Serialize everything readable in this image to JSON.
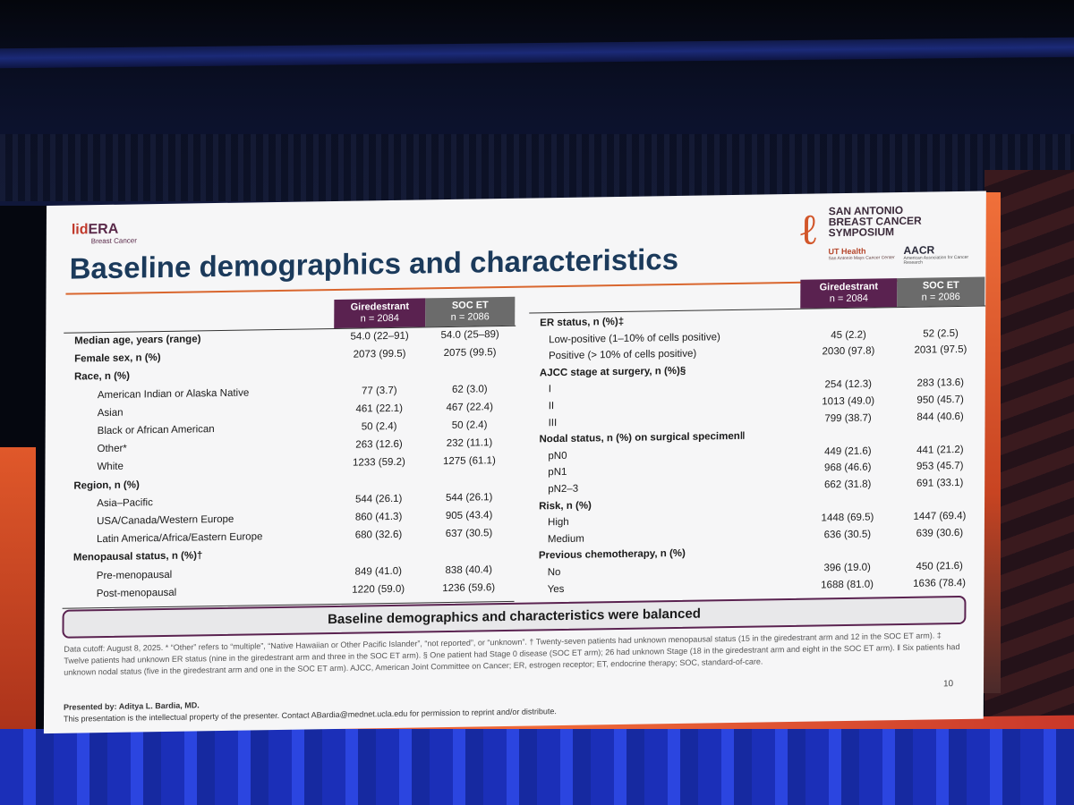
{
  "slide": {
    "logo": {
      "lid": "lid",
      "era": "ERA",
      "sub": "Breast Cancer"
    },
    "title": "Baseline demographics and characteristics",
    "symposium": {
      "name_line1": "SAN ANTONIO",
      "name_line2": "BREAST CANCER",
      "name_line3": "SYMPOSIUM",
      "ut": "UT Health",
      "ut_sub": "San Antonio Mays Cancer Center",
      "aacr": "AACR",
      "aacr_sub": "American Association for Cancer Research"
    },
    "columns": {
      "gir_name": "Giredestrant",
      "gir_n": "n = 2084",
      "soc_name": "SOC ET",
      "soc_n": "n = 2086"
    },
    "left_rows": [
      {
        "label": "Median age, years (range)",
        "bold": true,
        "v1": "54.0 (22–91)",
        "v2": "54.0 (25–89)"
      },
      {
        "label": "Female sex, n (%)",
        "bold": true,
        "v1": "2073 (99.5)",
        "v2": "2075 (99.5)"
      },
      {
        "label": "Race, n (%)",
        "bold": true,
        "v1": "",
        "v2": ""
      },
      {
        "label": "American Indian or Alaska Native",
        "bold": false,
        "v1": "77 (3.7)",
        "v2": "62 (3.0)"
      },
      {
        "label": "Asian",
        "bold": false,
        "v1": "461 (22.1)",
        "v2": "467 (22.4)"
      },
      {
        "label": "Black or African American",
        "bold": false,
        "v1": "50 (2.4)",
        "v2": "50 (2.4)"
      },
      {
        "label": "Other*",
        "bold": false,
        "v1": "263 (12.6)",
        "v2": "232 (11.1)"
      },
      {
        "label": "White",
        "bold": false,
        "v1": "1233 (59.2)",
        "v2": "1275 (61.1)"
      },
      {
        "label": "Region, n (%)",
        "bold": true,
        "v1": "",
        "v2": ""
      },
      {
        "label": "Asia–Pacific",
        "bold": false,
        "v1": "544 (26.1)",
        "v2": "544 (26.1)"
      },
      {
        "label": "USA/Canada/Western Europe",
        "bold": false,
        "v1": "860 (41.3)",
        "v2": "905 (43.4)"
      },
      {
        "label": "Latin America/Africa/Eastern Europe",
        "bold": false,
        "v1": "680 (32.6)",
        "v2": "637 (30.5)"
      },
      {
        "label": "Menopausal status, n (%)†",
        "bold": true,
        "v1": "",
        "v2": ""
      },
      {
        "label": "Pre-menopausal",
        "bold": false,
        "v1": "849 (41.0)",
        "v2": "838 (40.4)"
      },
      {
        "label": "Post-menopausal",
        "bold": false,
        "v1": "1220 (59.0)",
        "v2": "1236 (59.6)"
      }
    ],
    "right_rows": [
      {
        "label": "ER status, n (%)‡",
        "bold": true,
        "v1": "",
        "v2": ""
      },
      {
        "label": "Low-positive (1–10% of cells positive)",
        "bold": false,
        "v1": "45 (2.2)",
        "v2": "52 (2.5)"
      },
      {
        "label": "Positive (> 10% of cells positive)",
        "bold": false,
        "v1": "2030 (97.8)",
        "v2": "2031 (97.5)"
      },
      {
        "label": "AJCC stage at surgery, n (%)§",
        "bold": true,
        "v1": "",
        "v2": ""
      },
      {
        "label": "I",
        "bold": false,
        "v1": "254 (12.3)",
        "v2": "283 (13.6)"
      },
      {
        "label": "II",
        "bold": false,
        "v1": "1013 (49.0)",
        "v2": "950 (45.7)"
      },
      {
        "label": "III",
        "bold": false,
        "v1": "799 (38.7)",
        "v2": "844 (40.6)"
      },
      {
        "label": "Nodal status, n (%) on surgical specimen‖",
        "bold": true,
        "v1": "",
        "v2": ""
      },
      {
        "label": "pN0",
        "bold": false,
        "v1": "449 (21.6)",
        "v2": "441 (21.2)"
      },
      {
        "label": "pN1",
        "bold": false,
        "v1": "968 (46.6)",
        "v2": "953 (45.7)"
      },
      {
        "label": "pN2–3",
        "bold": false,
        "v1": "662 (31.8)",
        "v2": "691 (33.1)"
      },
      {
        "label": "Risk, n (%)",
        "bold": true,
        "v1": "",
        "v2": ""
      },
      {
        "label": "High",
        "bold": false,
        "v1": "1448 (69.5)",
        "v2": "1447 (69.4)"
      },
      {
        "label": "Medium",
        "bold": false,
        "v1": "636 (30.5)",
        "v2": "639 (30.6)"
      },
      {
        "label": "Previous chemotherapy, n (%)",
        "bold": true,
        "v1": "",
        "v2": ""
      },
      {
        "label": "No",
        "bold": false,
        "v1": "396 (19.0)",
        "v2": "450 (21.6)"
      },
      {
        "label": "Yes",
        "bold": false,
        "v1": "1688 (81.0)",
        "v2": "1636 (78.4)"
      }
    ],
    "balanced": "Baseline demographics and characteristics were balanced",
    "footnote": "Data cutoff: August 8, 2025. * “Other” refers to “multiple”, “Native Hawaiian or Other Pacific Islander”, “not reported”, or “unknown”. † Twenty-seven patients had unknown menopausal status (15 in the giredestrant arm and 12 in the SOC ET arm). ‡ Twelve patients had unknown ER status (nine in the giredestrant arm and three in the SOC ET arm). § One patient had Stage 0 disease (SOC ET arm); 26 had unknown Stage (18 in the giredestrant arm and eight in the SOC ET arm). ‖ Six patients had unknown nodal status (five in the giredestrant arm and one in the SOC ET arm). AJCC, American Joint Committee on Cancer; ER, estrogen receptor; ET, endocrine therapy; SOC, standard-of-care.",
    "presented": "Presented by: Aditya L. Bardia, MD.",
    "ip": "This presentation is the intellectual property of the presenter. Contact ABardia@mednet.ucla.edu for permission to reprint and/or distribute.",
    "page": "10"
  }
}
